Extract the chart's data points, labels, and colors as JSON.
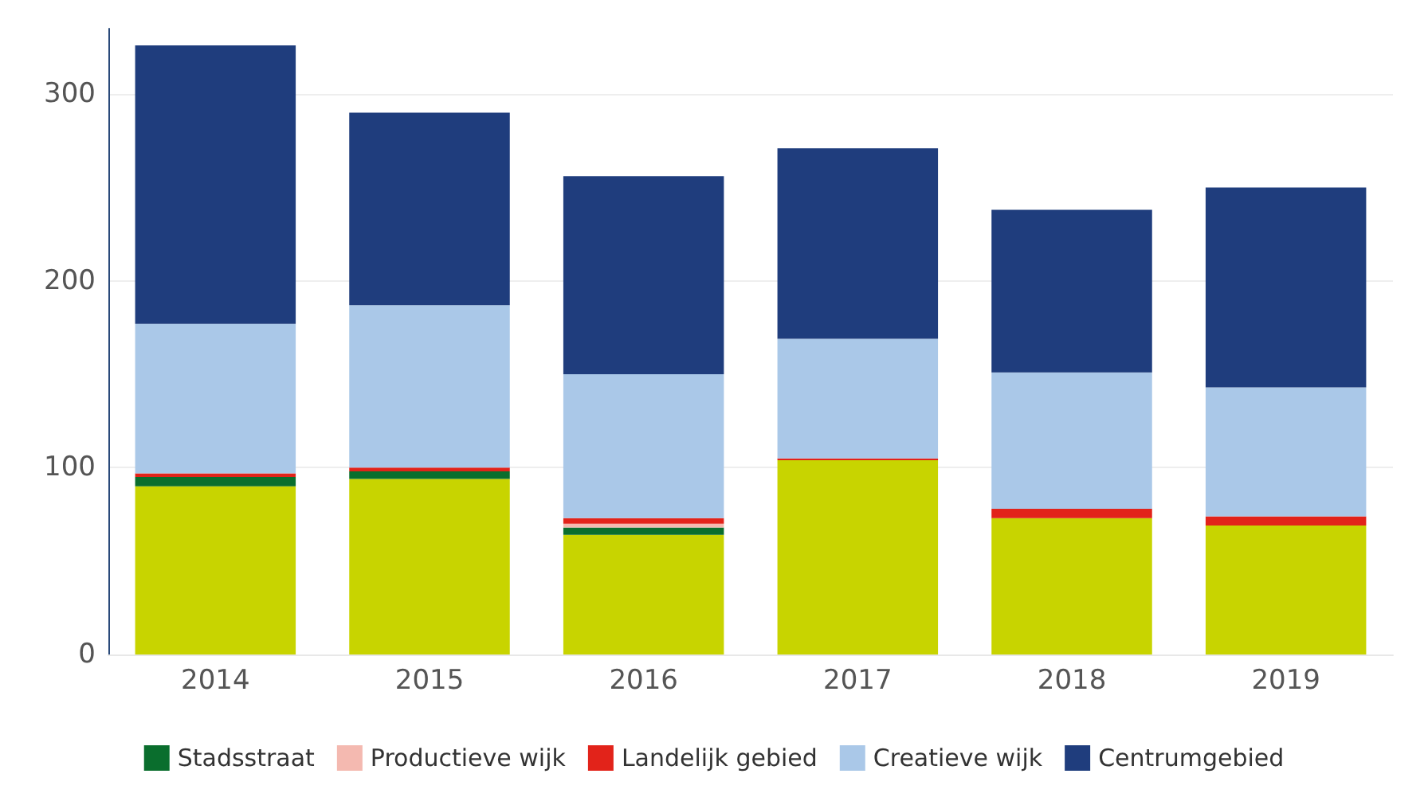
{
  "chart_data": {
    "type": "bar",
    "stacked": true,
    "categories": [
      "2014",
      "2015",
      "2016",
      "2017",
      "2018",
      "2019"
    ],
    "series": [
      {
        "color": "#c8d400",
        "values": [
          90,
          94,
          64,
          104,
          73,
          69
        ]
      },
      {
        "name": "Stadsstraat",
        "color": "#0a6e2d",
        "values": [
          5,
          4,
          4,
          0,
          0,
          0
        ]
      },
      {
        "name": "Productieve wijk",
        "color": "#f4b9b0",
        "values": [
          null,
          null,
          2,
          null,
          0,
          null
        ]
      },
      {
        "name": "Landelijk gebied",
        "color": "#e2231a",
        "values": [
          2,
          2,
          3,
          1,
          5,
          5
        ]
      },
      {
        "name": "Creatieve wijk",
        "color": "#aac8e8",
        "values": [
          80,
          87,
          77,
          64,
          73,
          69
        ]
      },
      {
        "name": "Centrumgebied",
        "color": "#1f3d7d",
        "values": [
          149,
          103,
          106,
          102,
          87,
          107
        ]
      }
    ],
    "ylim": [
      0,
      335
    ],
    "yticks": [
      0,
      100,
      200,
      300
    ],
    "grid": "y",
    "legend": "bottom"
  }
}
